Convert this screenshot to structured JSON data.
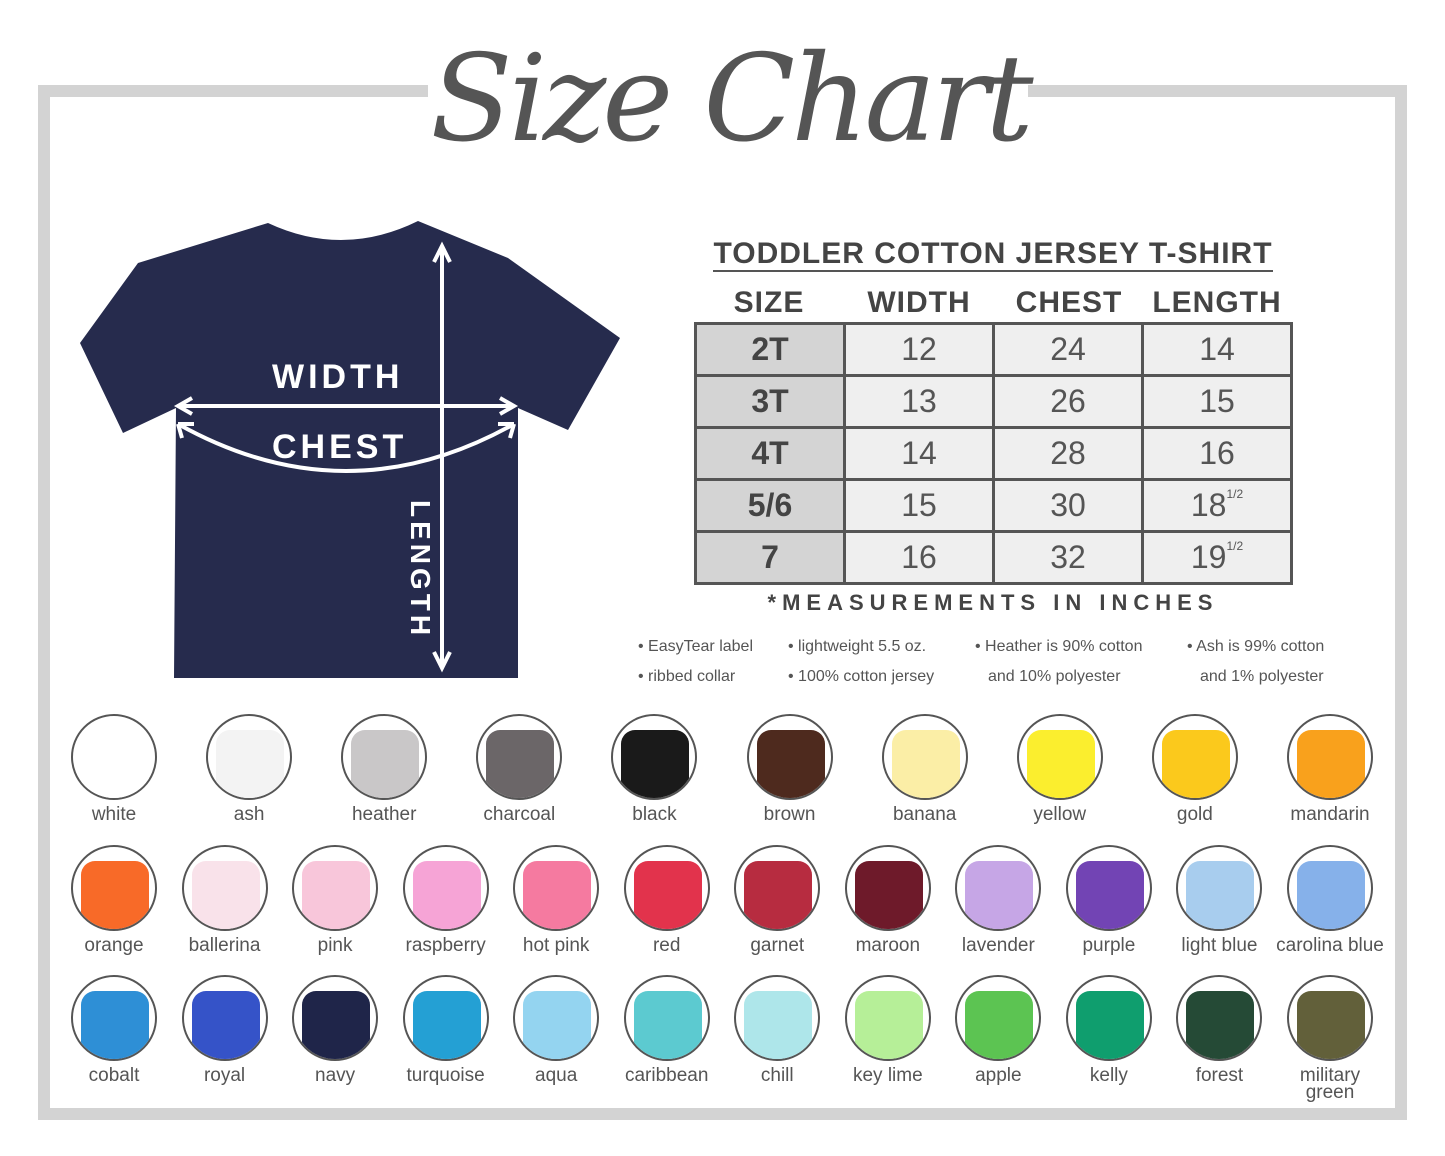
{
  "title": "Size Chart",
  "shirt_labels": {
    "width": "WIDTH",
    "chest": "CHEST",
    "length": "LENGTH"
  },
  "table": {
    "title": "TODDLER COTTON JERSEY T-SHIRT",
    "headers": [
      "SIZE",
      "WIDTH",
      "CHEST",
      "LENGTH"
    ],
    "rows": [
      [
        "2T",
        "12",
        "24",
        "14",
        ""
      ],
      [
        "3T",
        "13",
        "26",
        "15",
        ""
      ],
      [
        "4T",
        "14",
        "28",
        "16",
        ""
      ],
      [
        "5/6",
        "15",
        "30",
        "18",
        "1/2"
      ],
      [
        "7",
        "16",
        "32",
        "19",
        "1/2"
      ]
    ]
  },
  "note": "*MEASUREMENTS IN INCHES",
  "features": [
    "• EasyTear label",
    "• lightweight 5.5 oz.",
    "• Heather is 90% cotton",
    "• Ash is 99% cotton",
    "• ribbed collar",
    "• 100% cotton jersey",
    "and 10% polyester",
    "and 1% polyester"
  ],
  "colors": [
    [
      {
        "name": "white",
        "hex": "#ffffff"
      },
      {
        "name": "ash",
        "hex": "#f3f3f3"
      },
      {
        "name": "heather",
        "hex": "#c9c7c8"
      },
      {
        "name": "charcoal",
        "hex": "#6b6668"
      },
      {
        "name": "black",
        "hex": "#1a1a1a"
      },
      {
        "name": "brown",
        "hex": "#4e2a1e"
      },
      {
        "name": "banana",
        "hex": "#fbeea6"
      },
      {
        "name": "yellow",
        "hex": "#fbee2e"
      },
      {
        "name": "gold",
        "hex": "#fbc91c"
      },
      {
        "name": "mandarin",
        "hex": "#f9a11c"
      }
    ],
    [
      {
        "name": "orange",
        "hex": "#f86a28"
      },
      {
        "name": "ballerina",
        "hex": "#f9e2ea"
      },
      {
        "name": "pink",
        "hex": "#f8c6da"
      },
      {
        "name": "raspberry",
        "hex": "#f6a4d6"
      },
      {
        "name": "hot pink",
        "hex": "#f57aa0"
      },
      {
        "name": "red",
        "hex": "#e2334c"
      },
      {
        "name": "garnet",
        "hex": "#b72c40"
      },
      {
        "name": "maroon",
        "hex": "#6e1a2a"
      },
      {
        "name": "lavender",
        "hex": "#c6a6e6"
      },
      {
        "name": "purple",
        "hex": "#7244b4"
      },
      {
        "name": "light blue",
        "hex": "#a8cdee"
      },
      {
        "name": "carolina blue",
        "hex": "#86b1ea"
      }
    ],
    [
      {
        "name": "cobalt",
        "hex": "#2e8fd6"
      },
      {
        "name": "royal",
        "hex": "#3553c8"
      },
      {
        "name": "navy",
        "hex": "#1f2549"
      },
      {
        "name": "turquoise",
        "hex": "#24a0d4"
      },
      {
        "name": "aqua",
        "hex": "#94d4f0"
      },
      {
        "name": "caribbean",
        "hex": "#5ccad0"
      },
      {
        "name": "chill",
        "hex": "#aee6ea"
      },
      {
        "name": "key lime",
        "hex": "#b6ef98"
      },
      {
        "name": "apple",
        "hex": "#5cc452"
      },
      {
        "name": "kelly",
        "hex": "#0f9e6e"
      },
      {
        "name": "forest",
        "hex": "#254a36"
      },
      {
        "name": "military green",
        "hex": "#62603a"
      }
    ]
  ]
}
